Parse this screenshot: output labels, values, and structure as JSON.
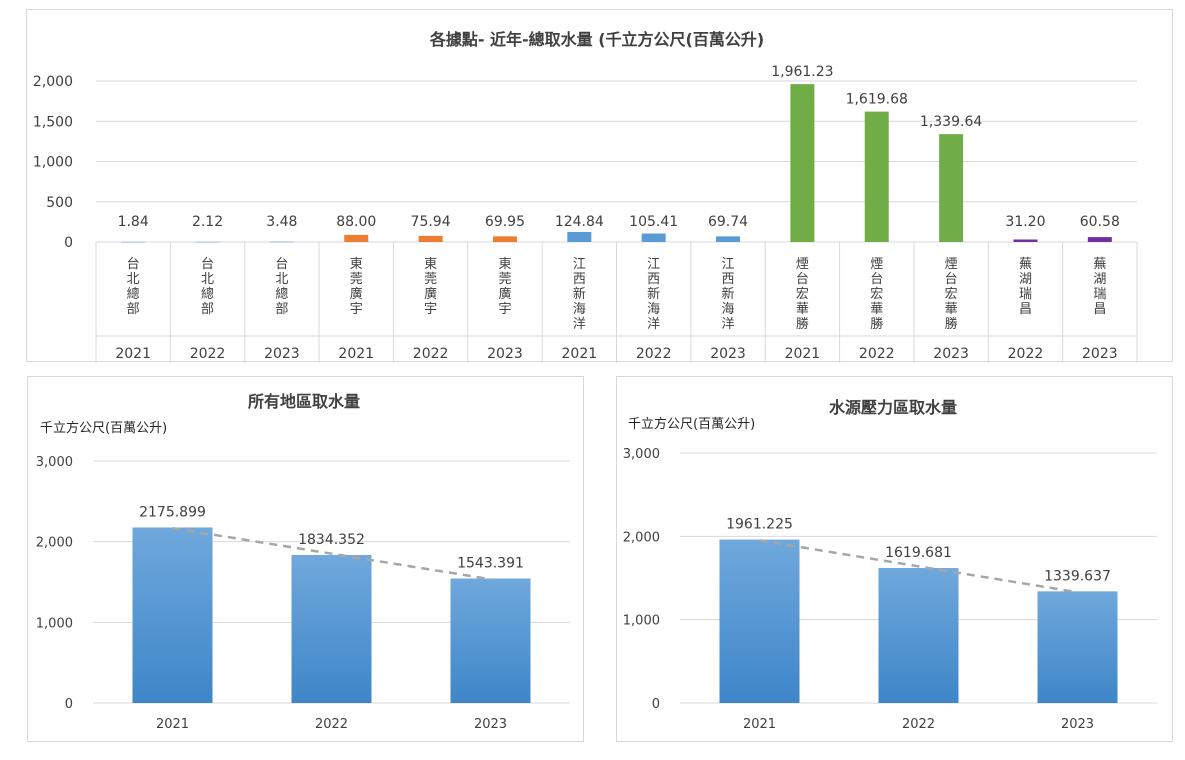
{
  "chart_data": [
    {
      "type": "bar",
      "title": "各據點- 近年-總取水量 (千立方公尺(百萬公升)",
      "ylim": [
        0,
        2000
      ],
      "yticks": [
        "2,000",
        "1,500",
        "1,000",
        "500",
        "0"
      ],
      "grid": true,
      "legend": "none",
      "categories": [
        {
          "site": "台北總部",
          "year": "2021",
          "value": 1.84,
          "label": "1.84",
          "color": "#5b9bd5"
        },
        {
          "site": "台北總部",
          "year": "2022",
          "value": 2.12,
          "label": "2.12",
          "color": "#5b9bd5"
        },
        {
          "site": "台北總部",
          "year": "2023",
          "value": 3.48,
          "label": "3.48",
          "color": "#5b9bd5"
        },
        {
          "site": "東莞廣宇",
          "year": "2021",
          "value": 88.0,
          "label": "88.00",
          "color": "#ed7d31"
        },
        {
          "site": "東莞廣宇",
          "year": "2022",
          "value": 75.94,
          "label": "75.94",
          "color": "#ed7d31"
        },
        {
          "site": "東莞廣宇",
          "year": "2023",
          "value": 69.95,
          "label": "69.95",
          "color": "#ed7d31"
        },
        {
          "site": "江西新海洋",
          "year": "2021",
          "value": 124.84,
          "label": "124.84",
          "color": "#5b9bd5"
        },
        {
          "site": "江西新海洋",
          "year": "2022",
          "value": 105.41,
          "label": "105.41",
          "color": "#5b9bd5"
        },
        {
          "site": "江西新海洋",
          "year": "2023",
          "value": 69.74,
          "label": "69.74",
          "color": "#5b9bd5"
        },
        {
          "site": "煙台宏華勝",
          "year": "2021",
          "value": 1961.23,
          "label": "1,961.23",
          "color": "#70ad47"
        },
        {
          "site": "煙台宏華勝",
          "year": "2022",
          "value": 1619.68,
          "label": "1,619.68",
          "color": "#70ad47"
        },
        {
          "site": "煙台宏華勝",
          "year": "2023",
          "value": 1339.64,
          "label": "1,339.64",
          "color": "#70ad47"
        },
        {
          "site": "蕪湖瑞昌",
          "year": "2022",
          "value": 31.2,
          "label": "31.20",
          "color": "#7030a0"
        },
        {
          "site": "蕪湖瑞昌",
          "year": "2023",
          "value": 60.58,
          "label": "60.58",
          "color": "#7030a0"
        }
      ]
    },
    {
      "type": "bar",
      "title": "所有地區取水量",
      "ylabel": "千立方公尺(百萬公升)",
      "ylim": [
        0,
        3000
      ],
      "yticks": [
        "3,000",
        "2,000",
        "1,000",
        "0"
      ],
      "grid": true,
      "trendline": "linear, dashed",
      "categories": [
        "2021",
        "2022",
        "2023"
      ],
      "values": [
        2175.899,
        1834.352,
        1543.391
      ],
      "labels": [
        "2175.899",
        "1834.352",
        "1543.391"
      ],
      "bar_color": "#5b9bd5"
    },
    {
      "type": "bar",
      "title": "水源壓力區取水量",
      "ylabel": "千立方公尺(百萬公升)",
      "ylim": [
        0,
        3000
      ],
      "yticks": [
        "3,000",
        "2,000",
        "1,000",
        "0"
      ],
      "grid": true,
      "trendline": "linear, dashed",
      "categories": [
        "2021",
        "2022",
        "2023"
      ],
      "values": [
        1961.225,
        1619.681,
        1339.637
      ],
      "labels": [
        "1961.225",
        "1619.681",
        "1339.637"
      ],
      "bar_color": "#5b9bd5"
    }
  ]
}
